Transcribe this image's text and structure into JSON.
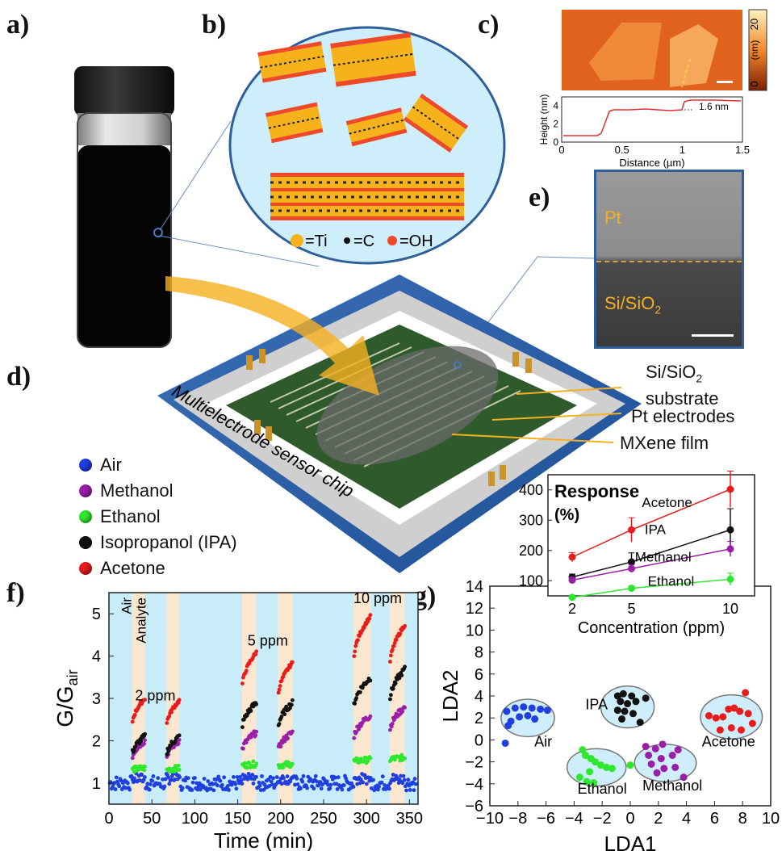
{
  "panels": {
    "a": "a)",
    "b": "b)",
    "c": "c)",
    "d": "d)",
    "e": "e)",
    "f": "f)",
    "g": "g)"
  },
  "panel_b": {
    "legend": [
      "=Ti",
      "=C",
      "=OH"
    ]
  },
  "panel_c": {
    "colorbar_max": "20",
    "colorbar_unit": "(nm)",
    "colorbar_min": "0",
    "step_annotation": "1.6 nm",
    "profile_ylabel": "Height (nm)",
    "profile_xlabel": "Distance (µm)",
    "x_ticks": [
      "0",
      "0.5",
      "1",
      "1.5"
    ],
    "y_ticks": [
      "0",
      "2",
      "4"
    ]
  },
  "panel_e": {
    "top_label": "Pt",
    "bottom_label_main": "Si/SiO",
    "bottom_label_sub": "2"
  },
  "panel_d": {
    "chip_label": "Multielectrode sensor chip",
    "callouts": {
      "substrate_line1_main": "Si/SiO",
      "substrate_line1_sub": "2",
      "substrate_line2": "substrate",
      "electrodes": "Pt electrodes",
      "film": "MXene film"
    }
  },
  "legend": {
    "items": [
      {
        "label": "Air",
        "color": "#1f3fe0"
      },
      {
        "label": "Methanol",
        "color": "#9a1fa8"
      },
      {
        "label": "Ethanol",
        "color": "#2ee82e"
      },
      {
        "label": "Isopropanol (IPA)",
        "color": "#111111"
      },
      {
        "label": "Acetone",
        "color": "#e81c1c"
      }
    ]
  },
  "colors": {
    "Air": "#1f3fe0",
    "Methanol": "#9a1fa8",
    "Ethanol": "#2ee82e",
    "IPA": "#111111",
    "Acetone": "#e81c1c",
    "air_band": "#c8ecf8",
    "analyte_band": "#fbe7cf",
    "frame_blue": "#2e5f9a"
  },
  "chart_data": [
    {
      "id": "f",
      "type": "scatter",
      "title": "",
      "xlabel": "Time (min)",
      "ylabel_main": "G/G",
      "ylabel_sub": "air",
      "xlim": [
        0,
        360
      ],
      "ylim": [
        0.5,
        5.5
      ],
      "x_ticks": [
        "0",
        "50",
        "100",
        "150",
        "200",
        "250",
        "300",
        "350"
      ],
      "y_ticks": [
        "1",
        "2",
        "3",
        "4",
        "5"
      ],
      "band_labels": {
        "air": "Air",
        "analyte": "Analyte"
      },
      "analyte_windows": [
        [
          27,
          42
        ],
        [
          67,
          82
        ],
        [
          155,
          172
        ],
        [
          197,
          214
        ],
        [
          285,
          305
        ],
        [
          327,
          345
        ]
      ],
      "concentration_labels": [
        {
          "text": "2 ppm",
          "x": 54,
          "y": 2.95
        },
        {
          "text": "5 ppm",
          "x": 185,
          "y": 4.25
        },
        {
          "text": "10 ppm",
          "x": 313,
          "y": 5.25
        }
      ],
      "series": [
        {
          "name": "Air",
          "level": 1.0
        },
        {
          "name": "Ethanol",
          "levels": [
            1.35,
            1.35,
            1.45,
            1.45,
            1.55,
            1.6
          ]
        },
        {
          "name": "Methanol",
          "levels": [
            2.0,
            2.0,
            2.2,
            2.2,
            2.6,
            2.8
          ]
        },
        {
          "name": "IPA",
          "levels": [
            2.1,
            2.1,
            2.9,
            2.9,
            3.5,
            3.7
          ]
        },
        {
          "name": "Acetone",
          "levels": [
            3.0,
            2.95,
            4.1,
            3.85,
            4.95,
            4.75
          ]
        }
      ]
    },
    {
      "id": "g",
      "type": "scatter",
      "title": "",
      "xlabel": "LDA1",
      "ylabel": "LDA2",
      "xlim": [
        -10,
        10
      ],
      "ylim": [
        -6,
        14
      ],
      "x_ticks": [
        "-10",
        "-8",
        "-6",
        "-4",
        "-2",
        "0",
        "2",
        "4",
        "6",
        "8",
        "10"
      ],
      "y_ticks": [
        "-6",
        "-4",
        "-2",
        "0",
        "2",
        "4",
        "6",
        "8",
        "10",
        "12",
        "14"
      ],
      "clusters": [
        {
          "name": "Air",
          "label": "Air",
          "cx": -7.3,
          "cy": 2.0,
          "rx": 1.9,
          "ry": 1.7,
          "points": [
            [
              -8.8,
              2.6
            ],
            [
              -8.2,
              2.9
            ],
            [
              -7.6,
              3.0
            ],
            [
              -7.0,
              2.9
            ],
            [
              -6.4,
              2.8
            ],
            [
              -5.9,
              2.7
            ],
            [
              -8.5,
              1.7
            ],
            [
              -7.9,
              2.1
            ],
            [
              -7.3,
              2.2
            ],
            [
              -6.8,
              1.9
            ],
            [
              -8.7,
              1.3
            ],
            [
              -8.9,
              -0.3
            ]
          ]
        },
        {
          "name": "IPA",
          "label": "IPA",
          "cx": -0.2,
          "cy": 3.0,
          "rx": 1.9,
          "ry": 1.9,
          "points": [
            [
              -0.9,
              4.0
            ],
            [
              -0.5,
              4.2
            ],
            [
              0.1,
              4.0
            ],
            [
              -0.7,
              3.5
            ],
            [
              -0.2,
              3.3
            ],
            [
              0.4,
              3.5
            ],
            [
              -0.9,
              2.7
            ],
            [
              -0.4,
              2.6
            ],
            [
              0.2,
              2.4
            ],
            [
              -0.6,
              1.9
            ],
            [
              0.7,
              1.6
            ],
            [
              1.1,
              3.8
            ]
          ]
        },
        {
          "name": "Acetone",
          "label": "Acetone",
          "cx": 7.2,
          "cy": 2.1,
          "rx": 2.2,
          "ry": 2.0,
          "points": [
            [
              5.6,
              2.2
            ],
            [
              6.1,
              2.0
            ],
            [
              6.6,
              2.1
            ],
            [
              7.0,
              2.8
            ],
            [
              7.4,
              2.9
            ],
            [
              7.8,
              2.6
            ],
            [
              8.2,
              4.3
            ],
            [
              8.4,
              2.4
            ],
            [
              6.4,
              0.9
            ],
            [
              7.2,
              1.1
            ],
            [
              7.9,
              0.9
            ],
            [
              8.7,
              1.5
            ]
          ]
        },
        {
          "name": "Ethanol",
          "label": "Ethanol",
          "cx": -2.4,
          "cy": -2.5,
          "rx": 2.1,
          "ry": 1.7,
          "points": [
            [
              -3.4,
              -0.9
            ],
            [
              -3.2,
              -1.4
            ],
            [
              -2.8,
              -1.7
            ],
            [
              -2.5,
              -2.0
            ],
            [
              -2.1,
              -2.3
            ],
            [
              -1.7,
              -2.5
            ],
            [
              -1.3,
              -2.6
            ],
            [
              -2.9,
              -2.9
            ],
            [
              -3.6,
              -3.4
            ],
            [
              -3.1,
              -3.8
            ],
            [
              -2.6,
              -3.9
            ],
            [
              0.0,
              -2.3
            ]
          ]
        },
        {
          "name": "Methanol",
          "label": "Methanol",
          "cx": 2.5,
          "cy": -2.1,
          "rx": 2.2,
          "ry": 1.7,
          "points": [
            [
              1.1,
              -0.6
            ],
            [
              1.8,
              -0.8
            ],
            [
              2.3,
              -0.4
            ],
            [
              1.3,
              -1.4
            ],
            [
              2.2,
              -1.7
            ],
            [
              3.0,
              -1.4
            ],
            [
              3.4,
              -0.9
            ],
            [
              1.5,
              -2.2
            ],
            [
              2.4,
              -2.6
            ],
            [
              3.2,
              -2.5
            ],
            [
              1.9,
              -3.0
            ],
            [
              3.8,
              -3.4
            ]
          ]
        }
      ]
    },
    {
      "id": "g-inset",
      "type": "line",
      "title": "Response",
      "title_unit": "(%)",
      "xlabel": "Concentration (ppm)",
      "ylabel": "",
      "x": [
        2,
        5,
        10
      ],
      "x_ticks": [
        "2",
        "5",
        "10"
      ],
      "y_ticks": [
        "100",
        "200",
        "300",
        "400"
      ],
      "ylim": [
        50,
        450
      ],
      "series": [
        {
          "name": "Acetone",
          "values": [
            178,
            268,
            402
          ],
          "errors": [
            15,
            40,
            60
          ]
        },
        {
          "name": "IPA",
          "values": [
            112,
            162,
            268
          ],
          "errors": [
            10,
            30,
            70
          ]
        },
        {
          "name": "Methanol",
          "values": [
            102,
            140,
            205
          ],
          "errors": [
            10,
            12,
            25
          ]
        },
        {
          "name": "Ethanol",
          "values": [
            45,
            75,
            105
          ],
          "errors": [
            6,
            8,
            20
          ]
        }
      ]
    }
  ]
}
